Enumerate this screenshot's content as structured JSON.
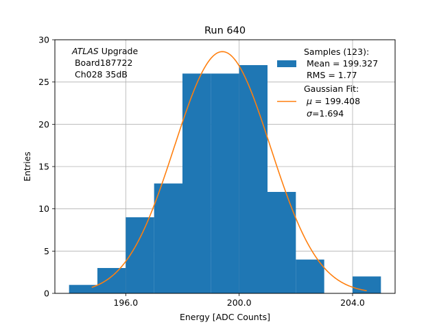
{
  "chart_data": {
    "type": "bar",
    "title": "Run 640",
    "xlabel": "Energy [ADC Counts]",
    "ylabel": "Entries",
    "xlim": [
      193.5,
      205.5
    ],
    "ylim": [
      0,
      30
    ],
    "grid": true,
    "x_ticks": [
      196,
      200,
      204
    ],
    "x_tick_labels": [
      "196.0",
      "200.0",
      "204.0"
    ],
    "y_ticks": [
      0,
      5,
      10,
      15,
      20,
      25,
      30
    ],
    "y_tick_labels": [
      "0",
      "5",
      "10",
      "15",
      "20",
      "25",
      "30"
    ],
    "bin_width": 1,
    "bin_left_edges": [
      194,
      195,
      196,
      197,
      198,
      199,
      200,
      201,
      202,
      203,
      204
    ],
    "values": [
      1,
      3,
      9,
      13,
      26,
      26,
      27,
      12,
      4,
      0,
      2
    ],
    "bar_color": "#1f77b4",
    "fit": {
      "type": "gaussian",
      "amplitude": 28.6,
      "mu": 199.408,
      "sigma": 1.694,
      "x_range": [
        194.8,
        204.5
      ],
      "color": "#ff7f0e"
    },
    "annotation": {
      "line1_italic": "ATLAS",
      "line1_rest": " Upgrade",
      "line2": " Board187722",
      "line3": " Ch028 35dB"
    },
    "legend": {
      "position": "top-right",
      "hist_lines": [
        "Samples (123):",
        " Mean = 199.327",
        " RMS = 1.77"
      ],
      "fit_lines": {
        "title": "Gaussian Fit:",
        "mu_symbol": "μ",
        "mu_value": " = 199.408",
        "sigma_symbol": "σ",
        "sigma_value": "=1.694"
      }
    }
  }
}
